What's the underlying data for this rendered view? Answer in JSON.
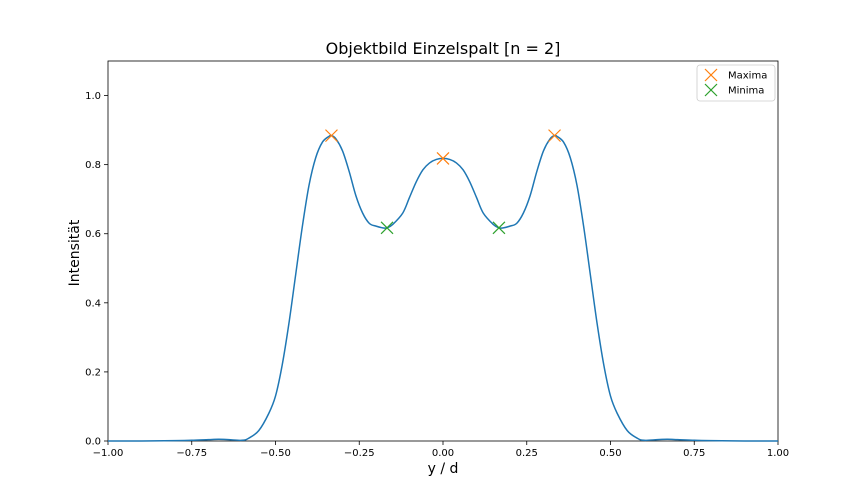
{
  "chart_data": {
    "type": "line",
    "title": "Objektbild Einzelspalt [n = 2]",
    "xlabel": "y / d",
    "ylabel": "Intensität",
    "xlim": [
      -1.0,
      1.0
    ],
    "ylim": [
      0.0,
      1.1
    ],
    "xticks": [
      -1.0,
      -0.75,
      -0.5,
      -0.25,
      0.0,
      0.25,
      0.5,
      0.75,
      1.0
    ],
    "xtick_labels": [
      "−1.00",
      "−0.75",
      "−0.50",
      "−0.25",
      "0.00",
      "0.25",
      "0.50",
      "0.75",
      "1.00"
    ],
    "yticks": [
      0.0,
      0.2,
      0.4,
      0.6,
      0.8,
      1.0
    ],
    "ytick_labels": [
      "0.0",
      "0.2",
      "0.4",
      "0.6",
      "0.8",
      "1.0"
    ],
    "grid": false,
    "legend_position": "top-right",
    "series": [
      {
        "color": "#1f77b4",
        "x": [
          -1.0,
          -0.9,
          -0.8,
          -0.75,
          -0.7,
          -0.67,
          -0.64,
          -0.6,
          -0.58,
          -0.55,
          -0.52,
          -0.5,
          -0.48,
          -0.46,
          -0.44,
          -0.42,
          -0.4,
          -0.38,
          -0.36,
          -0.34,
          -0.333,
          -0.32,
          -0.3,
          -0.28,
          -0.26,
          -0.24,
          -0.22,
          -0.2,
          -0.18,
          -0.167,
          -0.15,
          -0.12,
          -0.1,
          -0.08,
          -0.06,
          -0.04,
          -0.02,
          0.0,
          0.02,
          0.04,
          0.06,
          0.08,
          0.1,
          0.12,
          0.15,
          0.167,
          0.18,
          0.2,
          0.22,
          0.24,
          0.26,
          0.28,
          0.3,
          0.32,
          0.333,
          0.34,
          0.36,
          0.38,
          0.4,
          0.42,
          0.44,
          0.46,
          0.48,
          0.5,
          0.52,
          0.55,
          0.58,
          0.6,
          0.64,
          0.67,
          0.7,
          0.75,
          0.8,
          0.9,
          1.0
        ],
        "y": [
          0.0,
          0.0,
          0.001,
          0.002,
          0.004,
          0.005,
          0.004,
          0.002,
          0.008,
          0.03,
          0.08,
          0.13,
          0.22,
          0.34,
          0.48,
          0.62,
          0.74,
          0.82,
          0.865,
          0.882,
          0.884,
          0.875,
          0.84,
          0.78,
          0.71,
          0.66,
          0.63,
          0.622,
          0.617,
          0.617,
          0.627,
          0.66,
          0.705,
          0.75,
          0.785,
          0.805,
          0.815,
          0.818,
          0.815,
          0.805,
          0.785,
          0.75,
          0.705,
          0.66,
          0.627,
          0.617,
          0.617,
          0.622,
          0.63,
          0.66,
          0.71,
          0.78,
          0.84,
          0.875,
          0.884,
          0.882,
          0.865,
          0.82,
          0.74,
          0.62,
          0.48,
          0.34,
          0.22,
          0.13,
          0.08,
          0.03,
          0.008,
          0.002,
          0.004,
          0.005,
          0.004,
          0.002,
          0.001,
          0.0,
          0.0
        ]
      }
    ],
    "markers": [
      {
        "name": "Maxima",
        "color": "#ff7f0e",
        "points": [
          [
            -0.333,
            0.884
          ],
          [
            0.0,
            0.818
          ],
          [
            0.333,
            0.884
          ]
        ]
      },
      {
        "name": "Minima",
        "color": "#2ca02c",
        "points": [
          [
            -0.167,
            0.617
          ],
          [
            0.167,
            0.617
          ]
        ]
      }
    ]
  }
}
